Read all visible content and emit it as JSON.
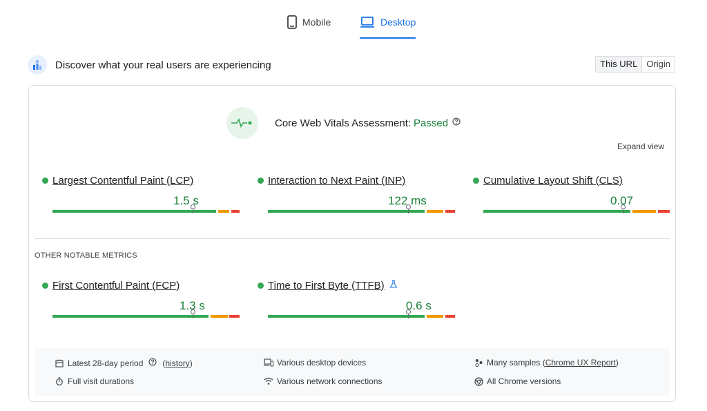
{
  "tabs": {
    "mobile_label": "Mobile",
    "desktop_label": "Desktop",
    "active": "desktop"
  },
  "header": {
    "title": "Discover what your real users are experiencing",
    "toggle": {
      "this_url": "This URL",
      "origin": "Origin",
      "active": "this_url"
    }
  },
  "assessment": {
    "label": "Core Web Vitals Assessment:",
    "status": "Passed"
  },
  "expand_label": "Expand view",
  "core_metrics": [
    {
      "name": "Largest Contentful Paint (LCP)",
      "value": "1.5 s",
      "status": "good"
    },
    {
      "name": "Interaction to Next Paint (INP)",
      "value": "122 ms",
      "status": "good"
    },
    {
      "name": "Cumulative Layout Shift (CLS)",
      "value": "0.07",
      "status": "good"
    }
  ],
  "other_label": "OTHER NOTABLE METRICS",
  "other_metrics": [
    {
      "name": "First Contentful Paint (FCP)",
      "value": "1.3 s",
      "status": "good"
    },
    {
      "name": "Time to First Byte (TTFB)",
      "value": "0.6 s",
      "status": "good",
      "experimental": true
    }
  ],
  "footer": {
    "period": "Latest 28-day period",
    "history_link": "history",
    "durations": "Full visit durations",
    "devices": "Various desktop devices",
    "network": "Various network connections",
    "samples_prefix": "Many samples (",
    "samples_link": "Chrome UX Report",
    "samples_suffix": ")",
    "versions": "All Chrome versions"
  },
  "colors": {
    "accent": "#1a73e8",
    "good": "#34a853",
    "good_text": "#188038",
    "needs_improvement": "#f29900",
    "poor": "#ea4335"
  }
}
